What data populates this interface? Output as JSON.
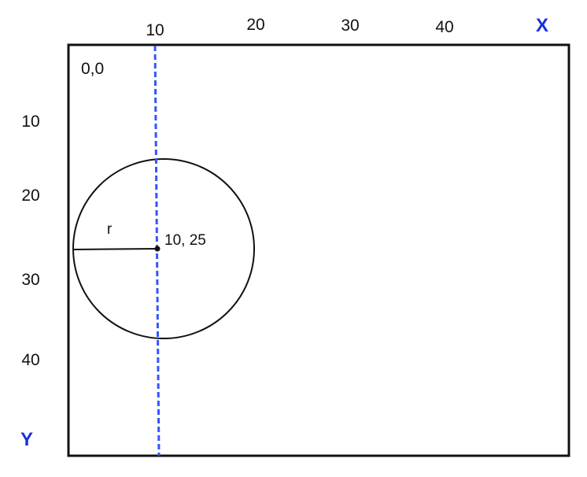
{
  "diagram": {
    "origin_label": "0,0",
    "x_axis": {
      "name": "X",
      "ticks": [
        "10",
        "20",
        "30",
        "40"
      ]
    },
    "y_axis": {
      "name": "Y",
      "ticks": [
        "10",
        "20",
        "30",
        "40"
      ]
    },
    "circle": {
      "center_label": "10, 25",
      "radius_label": "r"
    },
    "colors": {
      "axis_name": "#1a2fe0",
      "guide_line": "#3355ff",
      "stroke": "#111111"
    }
  }
}
